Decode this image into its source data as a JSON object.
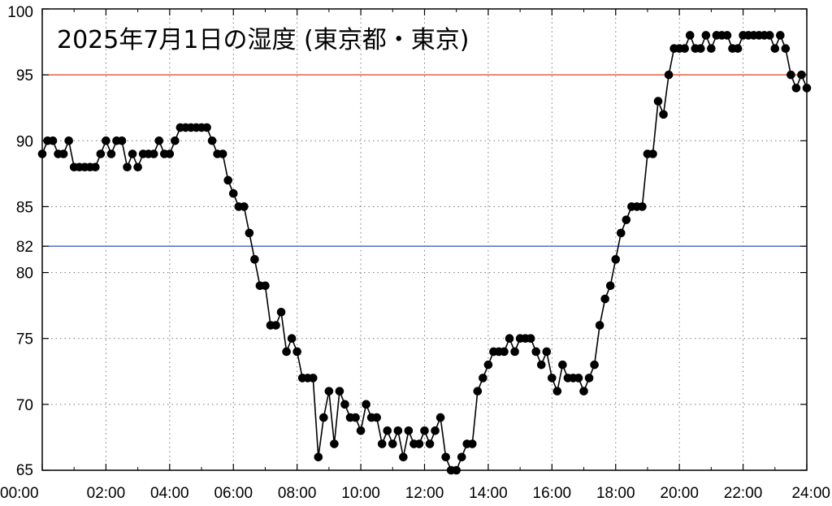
{
  "chart_data": {
    "type": "line",
    "title": "2025年7月1日の湿度 (東京都・東京)",
    "xlabel": "",
    "ylabel": "",
    "xlim": [
      0,
      24
    ],
    "ylim": [
      65,
      100
    ],
    "grid": true,
    "x_ticks": [
      "00:00",
      "02:00",
      "04:00",
      "06:00",
      "08:00",
      "10:00",
      "12:00",
      "14:00",
      "16:00",
      "18:00",
      "20:00",
      "22:00",
      "24:00"
    ],
    "y_ticks": [
      65,
      70,
      75,
      80,
      82,
      85,
      90,
      95,
      100
    ],
    "reference_lines": [
      {
        "value": 95,
        "color": "#e0401c"
      },
      {
        "value": 82,
        "color": "#2b4fc2"
      }
    ],
    "series": [
      {
        "color": "#000000",
        "x": [
          "00:00",
          "00:10",
          "00:20",
          "00:30",
          "00:40",
          "00:50",
          "01:00",
          "01:10",
          "01:20",
          "01:30",
          "01:40",
          "01:50",
          "02:00",
          "02:10",
          "02:20",
          "02:30",
          "02:40",
          "02:50",
          "03:00",
          "03:10",
          "03:20",
          "03:30",
          "03:40",
          "03:50",
          "04:00",
          "04:10",
          "04:20",
          "04:30",
          "04:40",
          "04:50",
          "05:00",
          "05:10",
          "05:20",
          "05:30",
          "05:40",
          "05:50",
          "06:00",
          "06:10",
          "06:20",
          "06:30",
          "06:40",
          "06:50",
          "07:00",
          "07:10",
          "07:20",
          "07:30",
          "07:40",
          "07:50",
          "08:00",
          "08:10",
          "08:20",
          "08:30",
          "08:40",
          "08:50",
          "09:00",
          "09:10",
          "09:20",
          "09:30",
          "09:40",
          "09:50",
          "10:00",
          "10:10",
          "10:20",
          "10:30",
          "10:40",
          "10:50",
          "11:00",
          "11:10",
          "11:20",
          "11:30",
          "11:40",
          "11:50",
          "12:00",
          "12:10",
          "12:20",
          "12:30",
          "12:40",
          "12:50",
          "13:00",
          "13:10",
          "13:20",
          "13:30",
          "13:40",
          "13:50",
          "14:00",
          "14:10",
          "14:20",
          "14:30",
          "14:40",
          "14:50",
          "15:00",
          "15:10",
          "15:20",
          "15:30",
          "15:40",
          "15:50",
          "16:00",
          "16:10",
          "16:20",
          "16:30",
          "16:40",
          "16:50",
          "17:00",
          "17:10",
          "17:20",
          "17:30",
          "17:40",
          "17:50",
          "18:00",
          "18:10",
          "18:20",
          "18:30",
          "18:40",
          "18:50",
          "19:00",
          "19:10",
          "19:20",
          "19:30",
          "19:40",
          "19:50",
          "20:00",
          "20:10",
          "20:20",
          "20:30",
          "20:40",
          "20:50",
          "21:00",
          "21:10",
          "21:20",
          "21:30",
          "21:40",
          "21:50",
          "22:00",
          "22:10",
          "22:20",
          "22:30",
          "22:40",
          "22:50",
          "23:00",
          "23:10",
          "23:20",
          "23:30",
          "23:40",
          "23:50",
          "24:00"
        ],
        "values": [
          89,
          90,
          90,
          89,
          89,
          90,
          88,
          88,
          88,
          88,
          88,
          89,
          90,
          89,
          90,
          90,
          88,
          89,
          88,
          89,
          89,
          89,
          90,
          89,
          89,
          90,
          91,
          91,
          91,
          91,
          91,
          91,
          90,
          89,
          89,
          87,
          86,
          85,
          85,
          83,
          81,
          79,
          79,
          76,
          76,
          77,
          74,
          75,
          74,
          72,
          72,
          72,
          66,
          69,
          71,
          67,
          71,
          70,
          69,
          69,
          68,
          70,
          69,
          69,
          67,
          68,
          67,
          68,
          66,
          68,
          67,
          67,
          68,
          67,
          68,
          69,
          66,
          65,
          65,
          66,
          67,
          67,
          71,
          72,
          73,
          74,
          74,
          74,
          75,
          74,
          75,
          75,
          75,
          74,
          73,
          74,
          72,
          71,
          73,
          72,
          72,
          72,
          71,
          72,
          73,
          76,
          78,
          79,
          81,
          83,
          84,
          85,
          85,
          85,
          89,
          89,
          93,
          92,
          95,
          97,
          97,
          97,
          98,
          97,
          97,
          98,
          97,
          98,
          98,
          98,
          97,
          97,
          98,
          98,
          98,
          98,
          98,
          98,
          97,
          98,
          97,
          95,
          94,
          95,
          94
        ]
      }
    ]
  }
}
